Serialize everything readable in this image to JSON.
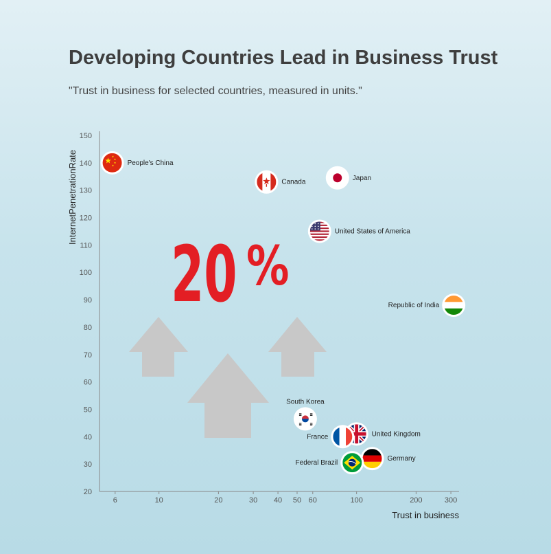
{
  "header": {
    "title": "Developing Countries Lead in Business Trust",
    "subtitle": "\"Trust in business for selected countries, measured in units.\""
  },
  "colors": {
    "highlight": "#e31e24",
    "arrows": "#c8c8c8",
    "axis": "#888888"
  },
  "annotation": {
    "big_number": "20",
    "big_symbol": "%",
    "decoration": [
      "up-arrow-icon",
      "up-arrow-icon",
      "up-arrow-icon"
    ]
  },
  "chart_data": {
    "type": "scatter",
    "xlabel": "Trust in business",
    "ylabel": "InternetPenetrationRate",
    "xscale": "log",
    "xlim": [
      5,
      330
    ],
    "ylim": [
      20,
      150
    ],
    "xticks": [
      6,
      10,
      20,
      30,
      40,
      50,
      60,
      100,
      200,
      300
    ],
    "yticks": [
      20,
      30,
      40,
      50,
      60,
      70,
      80,
      90,
      100,
      110,
      120,
      130,
      140,
      150
    ],
    "grid": false,
    "points": [
      {
        "label": "People's China",
        "x": 5.8,
        "y": 140,
        "flag": "china-flag-icon",
        "label_side": "right"
      },
      {
        "label": "Canada",
        "x": 35,
        "y": 133,
        "flag": "canada-flag-icon",
        "label_side": "right"
      },
      {
        "label": "Japan",
        "x": 80,
        "y": 134.5,
        "flag": "japan-flag-icon",
        "label_side": "right"
      },
      {
        "label": "United States of America",
        "x": 65,
        "y": 115,
        "flag": "usa-flag-icon",
        "label_side": "right"
      },
      {
        "label": "Republic of India",
        "x": 310,
        "y": 88,
        "flag": "india-flag-icon",
        "label_side": "left"
      },
      {
        "label": "South Korea",
        "x": 55,
        "y": 46.5,
        "flag": "south-korea-flag-icon",
        "label_side": "top"
      },
      {
        "label": "United Kingdom",
        "x": 100,
        "y": 41,
        "flag": "uk-flag-icon",
        "label_side": "right"
      },
      {
        "label": "France",
        "x": 85,
        "y": 40,
        "flag": "france-flag-icon",
        "label_side": "left"
      },
      {
        "label": "Germany",
        "x": 120,
        "y": 32,
        "flag": "germany-flag-icon",
        "label_side": "right"
      },
      {
        "label": "Federal Brazil",
        "x": 95,
        "y": 30.5,
        "flag": "brazil-flag-icon",
        "label_side": "left"
      }
    ]
  }
}
